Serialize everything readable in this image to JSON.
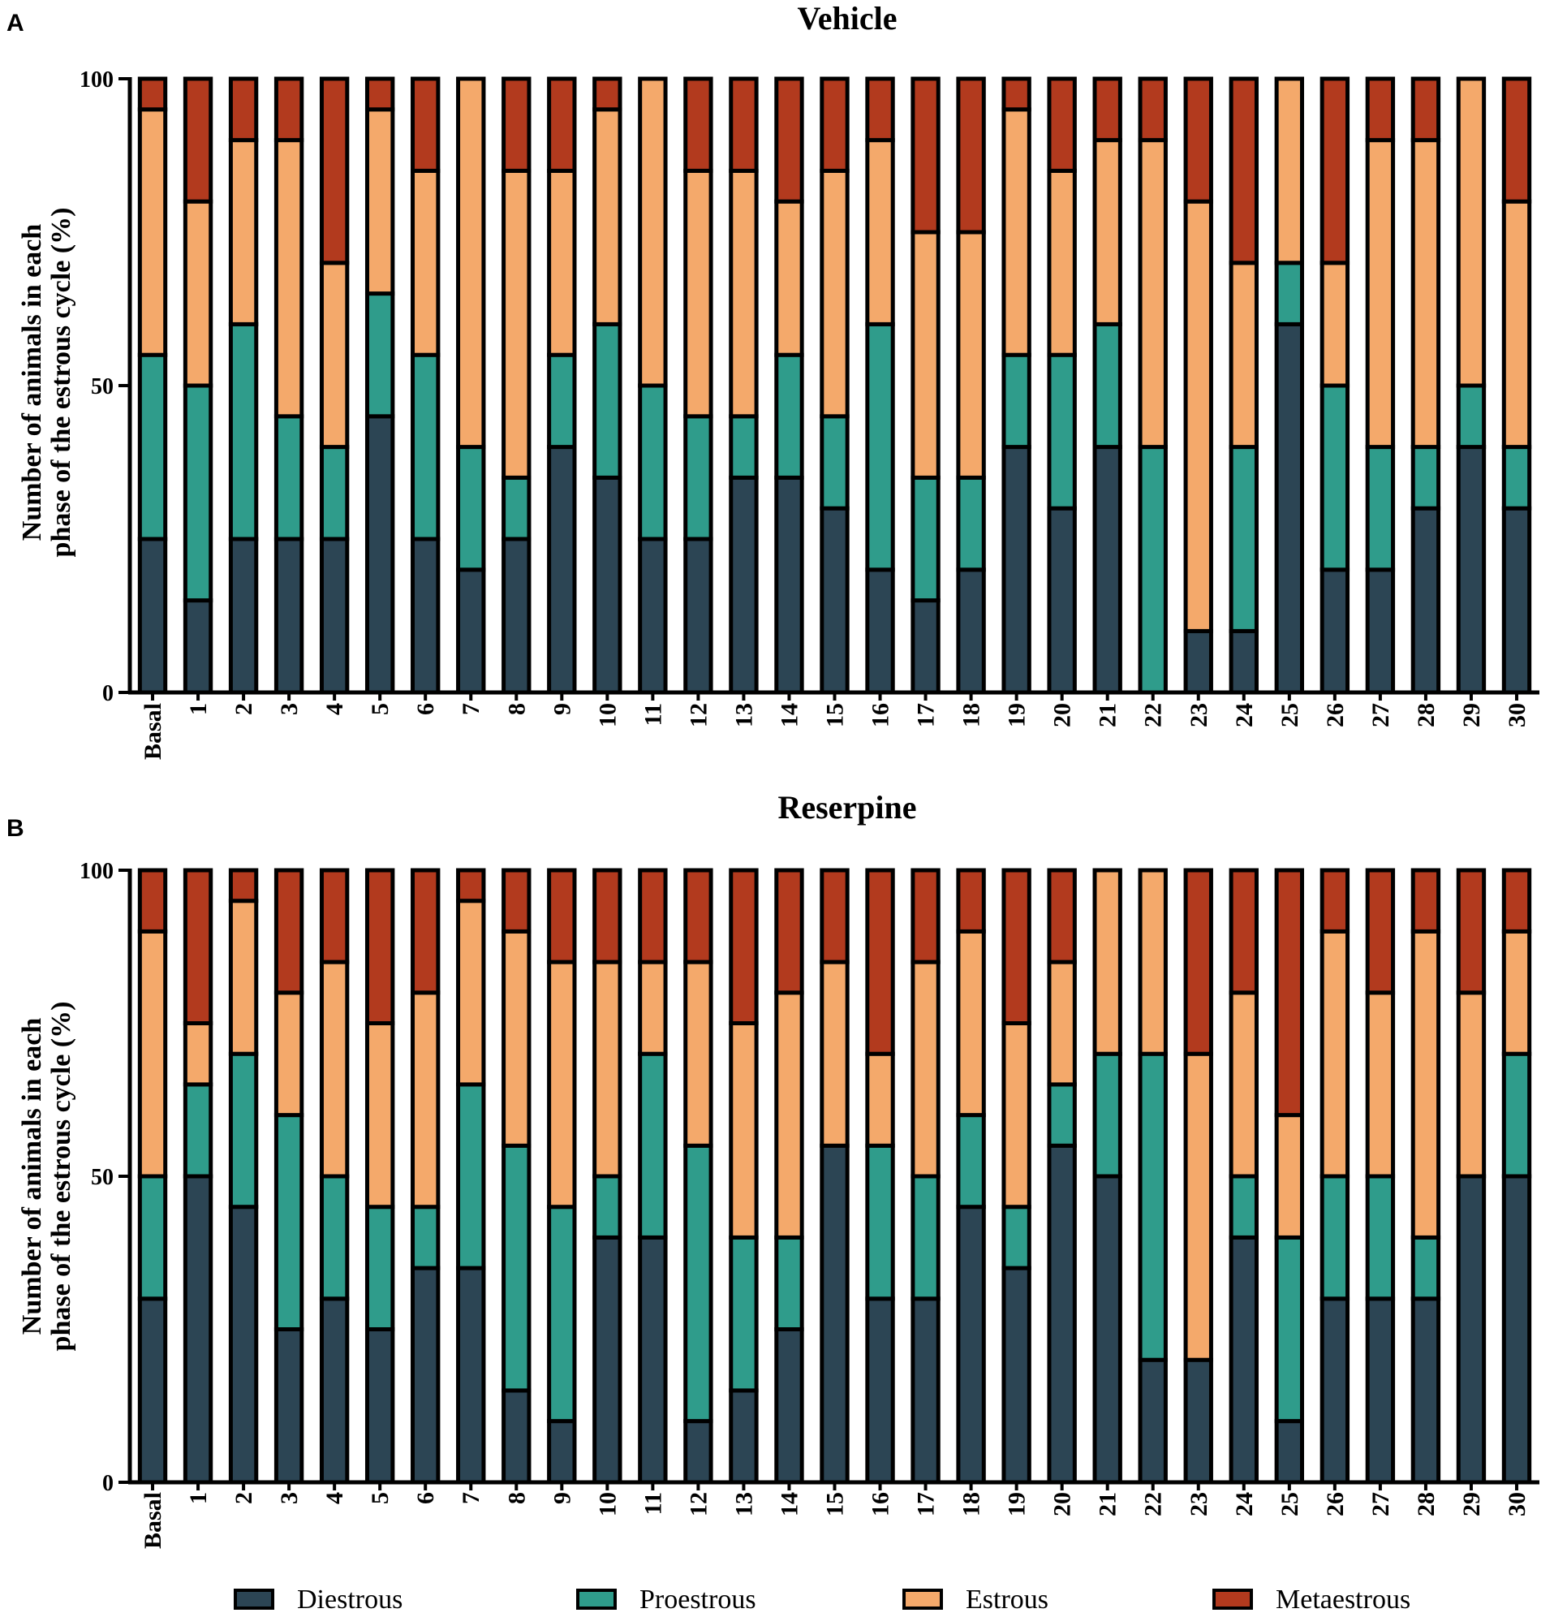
{
  "panels": [
    {
      "letter": "A",
      "title": "Vehicle",
      "ylabel_line1": "Number of animals in each",
      "ylabel_line2": "phase of the estrous cycle (%)"
    },
    {
      "letter": "B",
      "title": "Reserpine",
      "ylabel_line1": "Number of animals in each",
      "ylabel_line2": "phase of the estrous cycle (%)"
    }
  ],
  "legend": [
    "Diestrous",
    "Proestrous",
    "Estrous",
    "Metaestrous"
  ],
  "colors": {
    "Diestrous": "#2c4554",
    "Proestrous": "#2f9c8b",
    "Estrous": "#f4a96b",
    "Metaestrous": "#b23a1e",
    "outline": "#000000"
  },
  "chart_data": [
    {
      "type": "bar",
      "stacked": true,
      "title": "Vehicle",
      "xlabel": "",
      "ylabel": "Number of animals in each phase of the estrous cycle (%)",
      "ylim": [
        0,
        100
      ],
      "yticks": [
        "0",
        "50",
        "100"
      ],
      "categories": [
        "Basal",
        "1",
        "2",
        "3",
        "4",
        "5",
        "6",
        "7",
        "8",
        "9",
        "10",
        "11",
        "12",
        "13",
        "14",
        "15",
        "16",
        "17",
        "18",
        "19",
        "20",
        "21",
        "22",
        "23",
        "24",
        "25",
        "26",
        "27",
        "28",
        "29",
        "30"
      ],
      "series": [
        {
          "name": "Diestrous",
          "values": [
            25,
            15,
            25,
            25,
            25,
            45,
            25,
            20,
            25,
            40,
            35,
            25,
            25,
            35,
            35,
            30,
            20,
            15,
            20,
            40,
            30,
            40,
            0,
            10,
            10,
            60,
            20,
            20,
            30,
            40,
            30
          ]
        },
        {
          "name": "Proestrous",
          "values": [
            30,
            35,
            35,
            20,
            15,
            20,
            30,
            20,
            10,
            15,
            25,
            25,
            20,
            10,
            20,
            15,
            40,
            20,
            15,
            15,
            25,
            20,
            40,
            0,
            30,
            10,
            30,
            20,
            10,
            10,
            10
          ]
        },
        {
          "name": "Estrous",
          "values": [
            40,
            30,
            30,
            45,
            30,
            30,
            30,
            60,
            50,
            30,
            35,
            50,
            40,
            40,
            25,
            40,
            30,
            40,
            40,
            40,
            30,
            30,
            50,
            70,
            30,
            30,
            20,
            50,
            50,
            50,
            40
          ]
        },
        {
          "name": "Metaestrous",
          "values": [
            5,
            20,
            10,
            10,
            30,
            5,
            15,
            0,
            15,
            15,
            5,
            0,
            15,
            15,
            20,
            15,
            10,
            25,
            25,
            5,
            15,
            10,
            10,
            20,
            30,
            0,
            30,
            10,
            10,
            0,
            20
          ]
        }
      ]
    },
    {
      "type": "bar",
      "stacked": true,
      "title": "Reserpine",
      "xlabel": "",
      "ylabel": "Number of animals in each phase of the estrous cycle (%)",
      "ylim": [
        0,
        100
      ],
      "yticks": [
        "0",
        "50",
        "100"
      ],
      "categories": [
        "Basal",
        "1",
        "2",
        "3",
        "4",
        "5",
        "6",
        "7",
        "8",
        "9",
        "10",
        "11",
        "12",
        "13",
        "14",
        "15",
        "16",
        "17",
        "18",
        "19",
        "20",
        "21",
        "22",
        "23",
        "24",
        "25",
        "26",
        "27",
        "28",
        "29",
        "30"
      ],
      "series": [
        {
          "name": "Diestrous",
          "values": [
            30,
            50,
            45,
            25,
            30,
            25,
            35,
            35,
            15,
            10,
            40,
            40,
            10,
            15,
            25,
            55,
            30,
            30,
            45,
            35,
            55,
            50,
            20,
            20,
            40,
            10,
            30,
            30,
            30,
            50,
            50
          ]
        },
        {
          "name": "Proestrous",
          "values": [
            20,
            15,
            25,
            35,
            20,
            20,
            10,
            30,
            40,
            35,
            10,
            30,
            45,
            25,
            15,
            0,
            25,
            20,
            15,
            10,
            10,
            20,
            50,
            0,
            10,
            30,
            20,
            20,
            10,
            0,
            20
          ]
        },
        {
          "name": "Estrous",
          "values": [
            40,
            10,
            25,
            20,
            35,
            30,
            35,
            30,
            35,
            40,
            35,
            15,
            30,
            35,
            40,
            30,
            15,
            35,
            30,
            30,
            20,
            30,
            30,
            50,
            30,
            20,
            40,
            30,
            50,
            30,
            20
          ]
        },
        {
          "name": "Metaestrous",
          "values": [
            10,
            25,
            5,
            20,
            15,
            25,
            20,
            5,
            10,
            15,
            15,
            15,
            15,
            25,
            20,
            15,
            30,
            15,
            10,
            25,
            15,
            0,
            0,
            30,
            20,
            40,
            10,
            20,
            10,
            20,
            10
          ]
        }
      ]
    }
  ]
}
